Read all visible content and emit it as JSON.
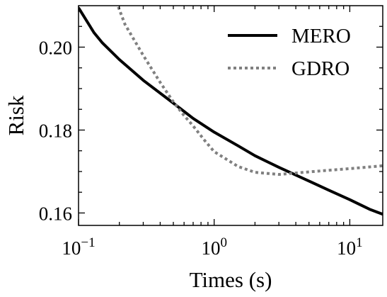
{
  "chart_data": {
    "type": "line",
    "title": "",
    "xlabel": "Times (s)",
    "ylabel": "Risk",
    "xscale": "log",
    "xlim": [
      0.1,
      17.5
    ],
    "ylim": [
      0.157,
      0.21
    ],
    "grid": false,
    "legend_position": "top-right",
    "x_ticks": [
      {
        "value": 0.1,
        "base": "10",
        "exp": "−1"
      },
      {
        "value": 1,
        "base": "10",
        "exp": "0"
      },
      {
        "value": 10,
        "base": "10",
        "exp": "1"
      }
    ],
    "y_ticks": [
      {
        "value": 0.16,
        "label": "0.16"
      },
      {
        "value": 0.18,
        "label": "0.18"
      },
      {
        "value": 0.2,
        "label": "0.20"
      }
    ],
    "series": [
      {
        "name": "MERO",
        "color": "#000000",
        "style": "solid",
        "x": [
          0.1,
          0.13,
          0.15,
          0.2,
          0.3,
          0.5,
          0.7,
          1.0,
          1.5,
          2.0,
          3.0,
          5.0,
          7.0,
          10.0,
          14.0,
          17.5
        ],
        "y": [
          0.2095,
          0.2035,
          0.201,
          0.197,
          0.192,
          0.1865,
          0.1828,
          0.1795,
          0.1762,
          0.1738,
          0.171,
          0.1677,
          0.1655,
          0.1632,
          0.1609,
          0.1597
        ]
      },
      {
        "name": "GDRO",
        "color": "#808080",
        "style": "dotted",
        "x": [
          0.19,
          0.22,
          0.3,
          0.4,
          0.5,
          0.6,
          0.7,
          0.85,
          1.0,
          1.5,
          2.0,
          3.0,
          5.0,
          7.0,
          10.0,
          14.0,
          17.5
        ],
        "y": [
          0.211,
          0.2055,
          0.198,
          0.1915,
          0.1868,
          0.1835,
          0.181,
          0.1775,
          0.1748,
          0.1712,
          0.1698,
          0.1693,
          0.1699,
          0.1703,
          0.1707,
          0.1711,
          0.1714
        ]
      }
    ]
  }
}
